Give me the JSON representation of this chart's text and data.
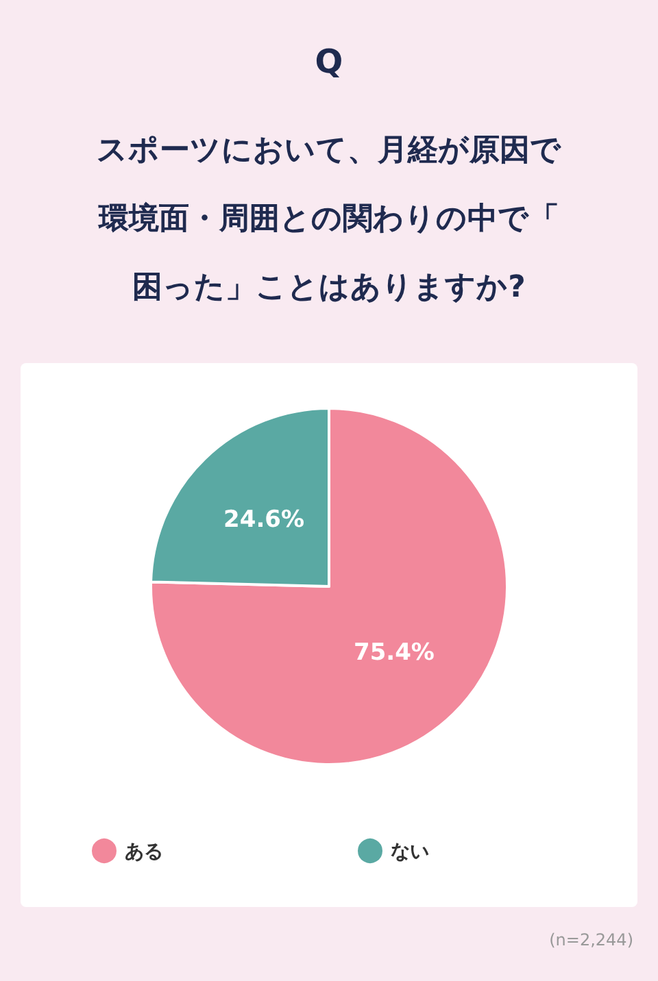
{
  "chart_data": {
    "type": "pie",
    "title": "Q",
    "subtitle": "スポーツにおいて、月経が原因で環境面・周囲との関わりの中で「困った」ことはありますか?",
    "categories": [
      "ある",
      "ない"
    ],
    "values": [
      75.4,
      24.6
    ],
    "colors": [
      "#f2889b",
      "#5aa9a3"
    ],
    "value_labels": [
      "75.4%",
      "24.6%"
    ],
    "legend": "bottom left",
    "annotations": [
      "(n=2,244)"
    ]
  }
}
